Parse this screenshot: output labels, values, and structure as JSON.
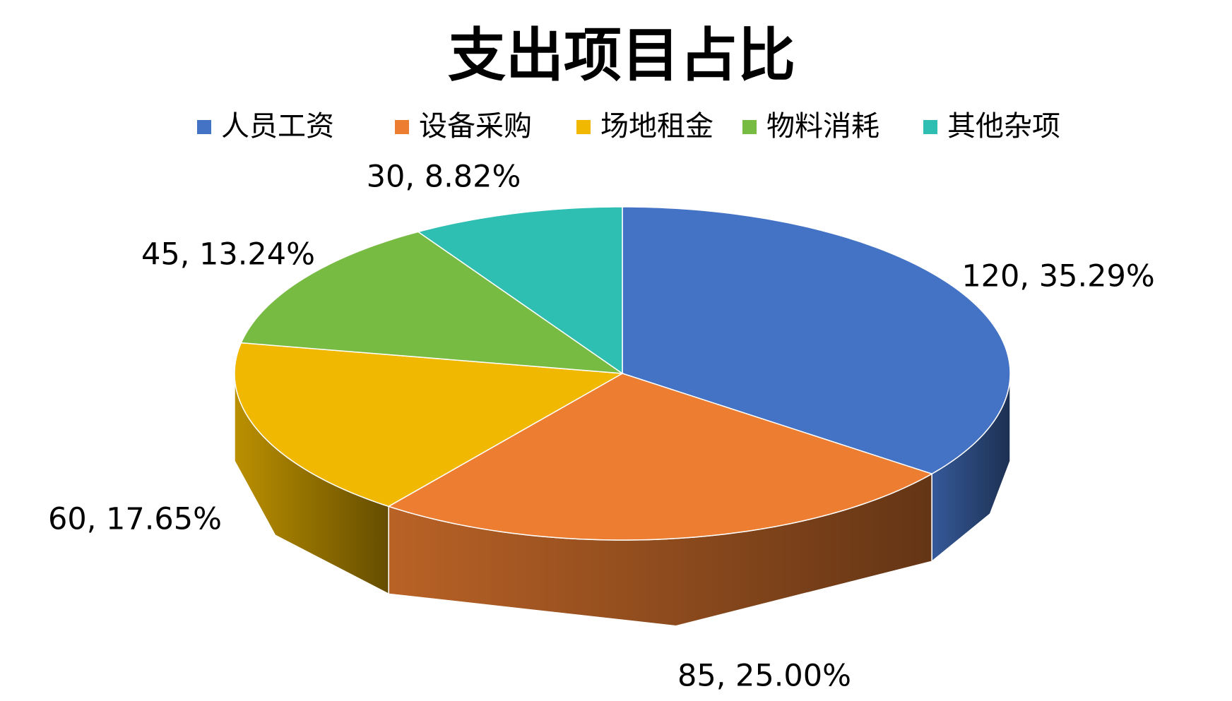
{
  "chart_data": {
    "type": "pie",
    "title": "支出项目占比",
    "categories": [
      "人员工资",
      "设备采购",
      "场地租金",
      "物料消耗",
      "其他杂项"
    ],
    "values": [
      120,
      85,
      60,
      45,
      30
    ],
    "value_labels": [
      "120, 35.29%",
      "85, 25.00%",
      "60, 17.65%",
      "45, 13.24%",
      "30, 8.82%"
    ],
    "colors": [
      "#4472c4",
      "#ed7d31",
      "#f0b800",
      "#78bb43",
      "#2ebfb2"
    ],
    "legend": "top"
  }
}
